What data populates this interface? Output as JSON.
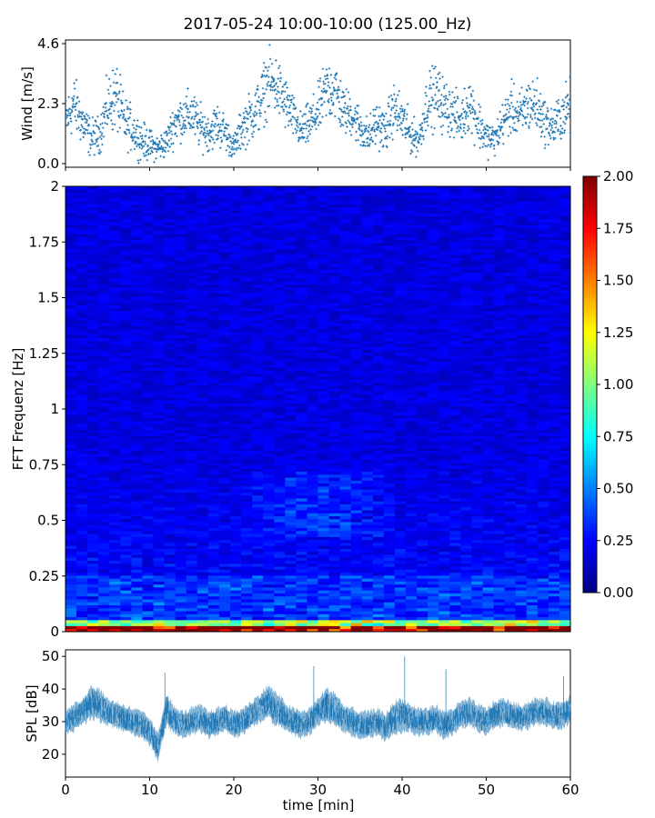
{
  "title": "2017-05-24 10:00-10:00 (125.00_Hz)",
  "chart_data": [
    {
      "id": "wind",
      "type": "scatter",
      "ylabel": "Wind [m/s]",
      "xlim": [
        0,
        60
      ],
      "ylim": [
        0,
        4.6
      ],
      "yticks": [
        "0.0",
        "2.3",
        "4.6"
      ],
      "color": "#1f77b4",
      "marker": "+",
      "envelope": {
        "x": [
          0,
          1,
          2,
          3,
          4,
          5,
          6,
          7,
          8,
          9,
          10,
          11,
          12,
          13,
          14,
          15,
          16,
          17,
          18,
          19,
          20,
          21,
          22,
          23,
          24,
          25,
          26,
          27,
          28,
          29,
          30,
          31,
          32,
          33,
          34,
          35,
          36,
          37,
          38,
          39,
          40,
          41,
          42,
          43,
          44,
          45,
          46,
          47,
          48,
          49,
          50,
          51,
          52,
          53,
          54,
          55,
          56,
          57,
          58,
          59,
          60
        ],
        "center": [
          1.6,
          2.3,
          1.6,
          1.0,
          1.1,
          2.2,
          2.6,
          1.6,
          1.3,
          0.9,
          0.7,
          0.6,
          0.8,
          1.6,
          1.8,
          1.9,
          1.4,
          1.2,
          1.5,
          1.2,
          0.6,
          1.4,
          1.8,
          2.2,
          3.1,
          3.0,
          2.4,
          1.8,
          1.2,
          1.5,
          2.0,
          2.8,
          2.9,
          2.0,
          1.9,
          1.4,
          1.0,
          1.6,
          1.2,
          2.1,
          1.7,
          1.1,
          0.9,
          2.4,
          2.6,
          2.2,
          2.0,
          1.6,
          2.4,
          1.6,
          1.0,
          0.9,
          1.6,
          2.1,
          1.8,
          2.3,
          2.2,
          1.6,
          1.4,
          1.9,
          2.2
        ],
        "spread": [
          0.8,
          0.9,
          0.8,
          0.6,
          0.6,
          0.9,
          1.1,
          0.8,
          0.7,
          0.6,
          0.5,
          0.4,
          0.5,
          0.7,
          0.7,
          0.8,
          0.7,
          0.6,
          0.7,
          0.6,
          0.4,
          0.7,
          0.8,
          0.9,
          1.0,
          1.0,
          0.9,
          0.7,
          0.6,
          0.7,
          0.8,
          1.0,
          1.1,
          0.8,
          0.7,
          0.7,
          0.6,
          0.7,
          0.7,
          0.8,
          0.8,
          0.6,
          0.5,
          0.9,
          1.0,
          0.9,
          0.8,
          0.7,
          0.9,
          0.8,
          0.6,
          0.5,
          0.7,
          0.8,
          0.8,
          0.9,
          0.9,
          0.7,
          0.7,
          0.8,
          0.9
        ]
      }
    },
    {
      "id": "spectrogram",
      "type": "heatmap",
      "ylabel": "FFT Frequenz [Hz]",
      "xlim": [
        0,
        60
      ],
      "ylim": [
        0,
        2
      ],
      "yticks": [
        "0",
        "0.25",
        "0.5",
        "0.75",
        "1",
        "1.25",
        "1.5",
        "1.75",
        "2"
      ],
      "colormap": "jet",
      "colorbar": {
        "vmin": 0,
        "vmax": 2,
        "ticks": [
          "0.00",
          "0.25",
          "0.50",
          "0.75",
          "1.00",
          "1.25",
          "1.50",
          "1.75",
          "2.00"
        ]
      }
    },
    {
      "id": "spl",
      "type": "line",
      "ylabel": "SPL [dB]",
      "xlabel": "time [min]",
      "xlim": [
        0,
        60
      ],
      "ylim": [
        13,
        52
      ],
      "yticks": [
        "20",
        "30",
        "40",
        "50"
      ],
      "xticks": [
        "0",
        "10",
        "20",
        "30",
        "40",
        "50",
        "60"
      ],
      "color": "#1f77b4",
      "envelope": {
        "x": [
          0,
          1,
          2,
          3,
          4,
          5,
          6,
          7,
          8,
          9,
          10,
          11,
          12,
          13,
          14,
          15,
          16,
          17,
          18,
          19,
          20,
          21,
          22,
          23,
          24,
          25,
          26,
          27,
          28,
          29,
          30,
          31,
          32,
          33,
          34,
          35,
          36,
          37,
          38,
          39,
          40,
          41,
          42,
          43,
          44,
          45,
          46,
          47,
          48,
          49,
          50,
          51,
          52,
          53,
          54,
          55,
          56,
          57,
          58,
          59,
          60
        ],
        "center": [
          30,
          31,
          33,
          36,
          35,
          33,
          32,
          31,
          30,
          29,
          27,
          22,
          34,
          30,
          29,
          30,
          31,
          29,
          30,
          31,
          29,
          30,
          32,
          34,
          36,
          34,
          32,
          30,
          29,
          30,
          33,
          35,
          34,
          31,
          30,
          29,
          29,
          30,
          28,
          31,
          32,
          31,
          30,
          30,
          31,
          29,
          30,
          32,
          33,
          31,
          30,
          32,
          33,
          32,
          31,
          32,
          33,
          33,
          32,
          32,
          34
        ],
        "spread": [
          4,
          4,
          4,
          5,
          5,
          4,
          4,
          4,
          4,
          4,
          4,
          4,
          5,
          4,
          4,
          4,
          4,
          4,
          4,
          4,
          4,
          4,
          4,
          4,
          5,
          5,
          4,
          4,
          4,
          4,
          4,
          5,
          5,
          4,
          4,
          4,
          4,
          4,
          4,
          5,
          5,
          4,
          4,
          4,
          4,
          4,
          4,
          4,
          4,
          4,
          4,
          4,
          4,
          4,
          4,
          4,
          4,
          4,
          4,
          4,
          4
        ]
      }
    }
  ]
}
